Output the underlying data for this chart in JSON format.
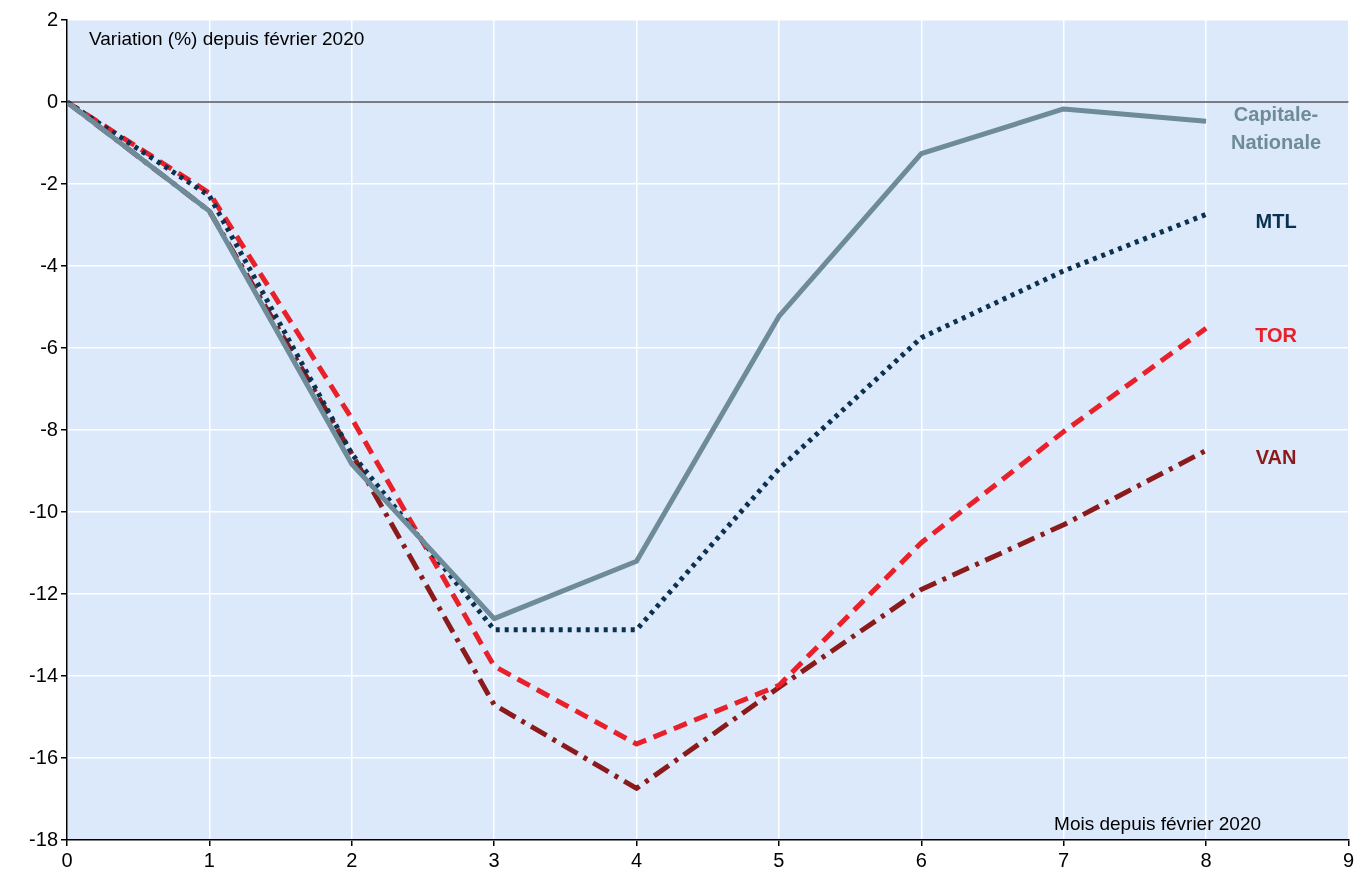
{
  "chart_data": {
    "type": "line",
    "xlabel": "Mois depuis février 2020",
    "ylabel": "Variation (%) depuis février 2020",
    "x": [
      0,
      1,
      2,
      3,
      4,
      5,
      6,
      7,
      8
    ],
    "xlim": [
      0,
      9
    ],
    "xticks": [
      0,
      1,
      2,
      3,
      4,
      5,
      6,
      7,
      8,
      9
    ],
    "ylim": [
      -18,
      2
    ],
    "yticks": [
      -18,
      -16,
      -14,
      -12,
      -10,
      -8,
      -6,
      -4,
      -2,
      0,
      2
    ],
    "grid": true,
    "legend": false,
    "marker": "none",
    "ref_lines": [
      {
        "axis": "y",
        "value": 0,
        "color": "#000000"
      }
    ],
    "series": [
      {
        "name": "Capitale-Nationale",
        "color": "#6e8b9a",
        "line_style": "solid",
        "values": [
          0,
          -2.66,
          -8.83,
          -12.6,
          -11.2,
          -5.23,
          -1.26,
          -0.17,
          -0.47
        ]
      },
      {
        "name": "MTL",
        "color": "#0b3150",
        "line_style": "dotted",
        "values": [
          0,
          -2.29,
          -8.58,
          -12.87,
          -12.87,
          -8.95,
          -5.75,
          -4.12,
          -2.74
        ]
      },
      {
        "name": "TOR",
        "color": "#e8202a",
        "line_style": "dashed",
        "values": [
          0,
          -2.22,
          -7.72,
          -13.76,
          -15.66,
          -14.23,
          -10.75,
          -8.04,
          -5.52
        ]
      },
      {
        "name": "VAN",
        "color": "#8b1a1a",
        "line_style": "dashdot",
        "values": [
          0,
          -2.66,
          -8.58,
          -14.7,
          -16.74,
          -14.28,
          -11.89,
          -10.31,
          -8.5
        ]
      }
    ]
  }
}
